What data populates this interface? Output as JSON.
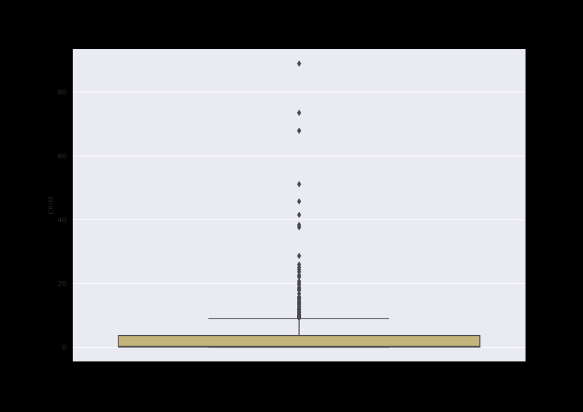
{
  "chart_data": {
    "type": "box",
    "xlabel": "",
    "ylabel": "CRIM",
    "ylim": [
      -4.45,
      93.5
    ],
    "yticks": [
      0,
      20,
      40,
      60,
      80
    ],
    "grid": true,
    "legend": "none",
    "colors": {
      "figure_background": "#000000",
      "plot_background": "#EAEAF2",
      "grid": "#FFFFFF",
      "box_fill": "#C4B57A",
      "box_edge": "#4A4A4A",
      "outlier": "#4A4A4A"
    },
    "box": {
      "min": 0.006,
      "q1": 0.082,
      "median": 0.257,
      "q3": 3.677,
      "max": 8.98
    },
    "outliers": [
      88.98,
      73.53,
      67.92,
      51.14,
      45.75,
      41.53,
      38.35,
      37.66,
      28.66,
      25.94,
      25.05,
      24.39,
      23.65,
      22.6,
      22.05,
      20.72,
      20.08,
      19.61,
      18.81,
      18.5,
      18.08,
      17.87,
      16.81,
      15.86,
      15.58,
      15.29,
      15.02,
      14.44,
      14.33,
      14.05,
      13.68,
      13.52,
      13.36,
      12.8,
      12.25,
      12.05,
      11.82,
      11.58,
      11.16,
      11.11,
      11.09,
      10.83,
      10.67,
      10.23,
      10.06,
      9.92,
      9.82,
      9.73,
      9.59,
      9.51,
      9.39,
      9.33,
      9.19
    ]
  }
}
